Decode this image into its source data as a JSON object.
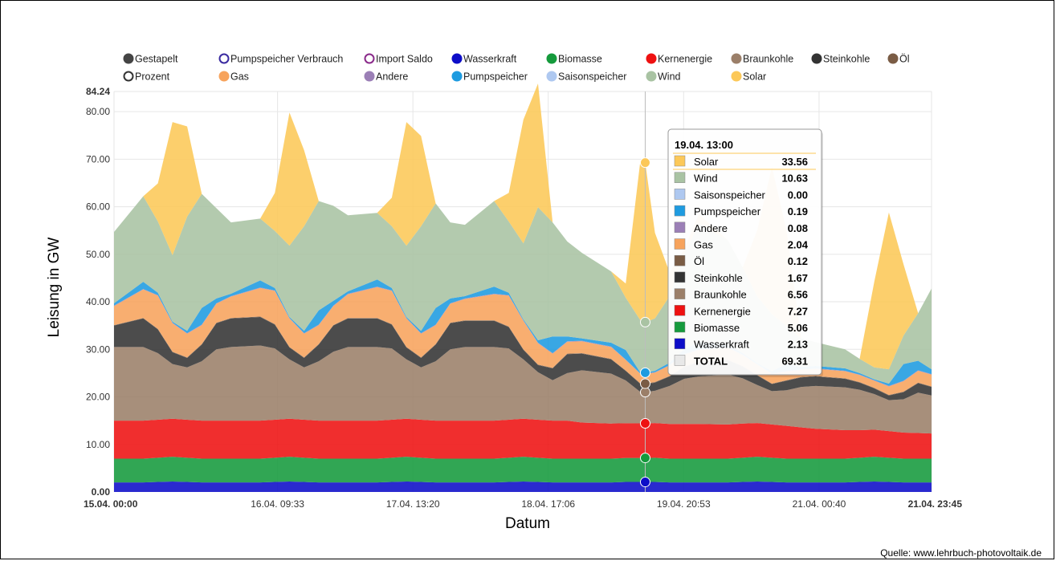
{
  "source": "Quelle: www.lehrbuch-photovoltaik.de",
  "colors": {
    "Gestapelt": "#444444",
    "Prozent": "#ffffff",
    "Pumpspeicher Verbrauch": "#ffffff",
    "Gas": "#f7a35c",
    "Import Saldo": "#ffffff",
    "Andere": "#9b7fb6",
    "Wasserkraft": "#0d0dc8",
    "Pumpspeicher": "#1e9be0",
    "Biomasse": "#159a3c",
    "Saisonspeicher": "#aec8f0",
    "Kernenergie": "#ee1111",
    "Wind": "#a9c3a3",
    "Braunkohle": "#9b7f69",
    "Solar": "#fcc858",
    "Steinkohle": "#333333",
    "Öl": "#7a5c45"
  },
  "legend": [
    [
      "Gestapelt",
      "Pumpspeicher Verbrauch",
      "Import Saldo",
      "Wasserkraft",
      "Biomasse",
      "Kernenergie",
      "Braunkohle",
      "Steinkohle",
      "Öl"
    ],
    [
      "Prozent",
      "Gas",
      "Andere",
      "Pumpspeicher",
      "Saisonspeicher",
      "Wind",
      "Solar"
    ]
  ],
  "legend_ring": {
    "Pumpspeicher Verbrauch": "#3a2aa0",
    "Import Saldo": "#8a2a8a",
    "Prozent": "#333333"
  },
  "tooltip": {
    "title": "19.04. 13:00",
    "rows": [
      {
        "name": "Solar",
        "value": "33.56"
      },
      {
        "name": "Wind",
        "value": "10.63"
      },
      {
        "name": "Saisonspeicher",
        "value": "0.00"
      },
      {
        "name": "Pumpspeicher",
        "value": "0.19"
      },
      {
        "name": "Andere",
        "value": "0.08"
      },
      {
        "name": "Gas",
        "value": "2.04"
      },
      {
        "name": "Öl",
        "value": "0.12"
      },
      {
        "name": "Steinkohle",
        "value": "1.67"
      },
      {
        "name": "Braunkohle",
        "value": "6.56"
      },
      {
        "name": "Kernenergie",
        "value": "7.27"
      },
      {
        "name": "Biomasse",
        "value": "5.06"
      },
      {
        "name": "Wasserkraft",
        "value": "2.13"
      },
      {
        "name": "TOTAL",
        "value": "69.31"
      }
    ]
  },
  "chart_data": {
    "type": "area",
    "stacked": true,
    "xlabel": "Datum",
    "ylabel": "Leisung in GW",
    "ylim": [
      0,
      84.24
    ],
    "xlim_hours": [
      0,
      167.75
    ],
    "y_ticks": [
      "0.00",
      "10.00",
      "20.00",
      "30.00",
      "40.00",
      "50.00",
      "60.00",
      "70.00",
      "80.00",
      "84.24"
    ],
    "y_tick_values": [
      0,
      10,
      20,
      30,
      40,
      50,
      60,
      70,
      80,
      84.24
    ],
    "x_ticks": [
      {
        "label": "15.04. 00:00",
        "hour": 0,
        "bold": true
      },
      {
        "label": "16.04. 09:33",
        "hour": 33.55
      },
      {
        "label": "17.04. 13:20",
        "hour": 61.33
      },
      {
        "label": "18.04. 17:06",
        "hour": 89.1
      },
      {
        "label": "19.04. 20:53",
        "hour": 116.88
      },
      {
        "label": "21.04. 00:40",
        "hour": 144.67
      },
      {
        "label": "21.04. 23:45",
        "hour": 167.75,
        "bold": true
      }
    ],
    "hover_hour": 109,
    "x_hours": [
      0,
      6,
      9,
      12,
      15,
      18,
      21,
      24,
      30,
      33,
      36,
      39,
      42,
      45,
      48,
      54,
      57,
      60,
      63,
      66,
      69,
      72,
      78,
      81,
      84,
      87,
      90,
      93,
      96,
      102,
      105,
      108,
      109,
      111,
      114,
      117,
      120,
      126,
      129,
      132,
      135,
      138,
      141,
      144,
      150,
      153,
      156,
      159,
      162,
      165,
      167.75
    ],
    "series": [
      {
        "name": "Wasserkraft",
        "color": "#0d0dc8",
        "values": [
          2.0,
          2.0,
          2.1,
          2.2,
          2.1,
          2.0,
          2.0,
          2.0,
          2.0,
          2.1,
          2.2,
          2.1,
          2.0,
          2.0,
          2.0,
          2.0,
          2.1,
          2.2,
          2.1,
          2.0,
          2.0,
          2.0,
          2.0,
          2.1,
          2.2,
          2.1,
          2.0,
          2.0,
          2.0,
          2.0,
          2.1,
          2.1,
          2.1,
          2.1,
          2.0,
          2.0,
          2.0,
          2.0,
          2.1,
          2.2,
          2.1,
          2.0,
          2.0,
          2.0,
          2.0,
          2.1,
          2.2,
          2.1,
          2.0,
          2.0,
          2.0
        ]
      },
      {
        "name": "Biomasse",
        "color": "#159a3c",
        "values": [
          5.0,
          5.0,
          5.1,
          5.2,
          5.1,
          5.0,
          5.0,
          5.0,
          5.0,
          5.1,
          5.2,
          5.1,
          5.0,
          5.0,
          5.0,
          5.0,
          5.1,
          5.2,
          5.1,
          5.0,
          5.0,
          5.0,
          5.0,
          5.1,
          5.2,
          5.1,
          5.0,
          5.0,
          5.0,
          5.0,
          5.06,
          5.06,
          5.06,
          5.1,
          5.0,
          5.0,
          5.0,
          5.0,
          5.1,
          5.2,
          5.1,
          5.0,
          5.0,
          5.0,
          5.0,
          5.1,
          5.2,
          5.1,
          5.0,
          5.0,
          5.0
        ]
      },
      {
        "name": "Kernenergie",
        "color": "#ee1111",
        "values": [
          8.0,
          8.0,
          8.0,
          8.0,
          8.0,
          8.0,
          8.0,
          8.0,
          8.0,
          8.0,
          8.0,
          8.0,
          8.0,
          8.0,
          8.0,
          8.0,
          8.0,
          8.0,
          8.0,
          8.0,
          8.0,
          8.0,
          8.0,
          8.0,
          8.0,
          8.0,
          8.0,
          8.0,
          7.6,
          7.4,
          7.3,
          7.27,
          7.27,
          7.3,
          7.3,
          7.3,
          7.3,
          7.2,
          7.2,
          7.1,
          7.0,
          6.9,
          6.6,
          6.3,
          6.0,
          5.8,
          5.7,
          5.6,
          5.5,
          5.4,
          5.3
        ]
      },
      {
        "name": "Braunkohle",
        "color": "#9b7f69",
        "values": [
          15.5,
          15.5,
          14.0,
          11.5,
          11.0,
          12.5,
          15.0,
          15.5,
          15.8,
          15.0,
          12.5,
          11.0,
          12.5,
          14.5,
          15.5,
          15.5,
          15.0,
          12.5,
          11.0,
          12.5,
          15.0,
          15.5,
          15.5,
          15.0,
          12.5,
          10.0,
          8.5,
          10.0,
          11.0,
          10.5,
          9.0,
          6.6,
          6.56,
          6.8,
          8.0,
          9.5,
          10.0,
          10.5,
          9.5,
          8.0,
          7.0,
          7.5,
          8.5,
          9.0,
          9.0,
          8.5,
          7.5,
          6.5,
          7.0,
          8.5,
          8.0
        ]
      },
      {
        "name": "Steinkohle",
        "color": "#333333",
        "values": [
          4.5,
          6.0,
          5.0,
          2.5,
          2.0,
          3.5,
          5.5,
          6.0,
          6.0,
          5.0,
          2.5,
          2.0,
          3.5,
          5.5,
          6.0,
          6.0,
          5.0,
          2.5,
          2.0,
          3.5,
          5.5,
          5.5,
          5.5,
          4.5,
          2.0,
          1.5,
          2.5,
          4.0,
          3.5,
          3.0,
          2.0,
          1.7,
          1.67,
          1.7,
          2.0,
          2.5,
          3.0,
          3.0,
          2.5,
          2.0,
          1.5,
          2.0,
          2.0,
          2.0,
          1.8,
          1.5,
          1.2,
          1.0,
          1.5,
          2.0,
          1.8
        ]
      },
      {
        "name": "Öl",
        "color": "#7a5c45",
        "values": [
          0.1,
          0.1,
          0.1,
          0.1,
          0.1,
          0.1,
          0.1,
          0.1,
          0.1,
          0.1,
          0.1,
          0.1,
          0.1,
          0.1,
          0.1,
          0.1,
          0.1,
          0.1,
          0.1,
          0.1,
          0.1,
          0.1,
          0.1,
          0.1,
          0.1,
          0.1,
          0.1,
          0.1,
          0.1,
          0.1,
          0.1,
          0.12,
          0.12,
          0.12,
          0.1,
          0.1,
          0.1,
          0.1,
          0.1,
          0.1,
          0.1,
          0.1,
          0.1,
          0.1,
          0.1,
          0.1,
          0.1,
          0.1,
          0.1,
          0.1,
          0.1
        ]
      },
      {
        "name": "Gas",
        "color": "#f7a35c",
        "values": [
          4.0,
          6.0,
          7.0,
          6.0,
          5.0,
          4.0,
          4.0,
          4.5,
          6.0,
          7.0,
          6.0,
          5.0,
          4.0,
          4.0,
          5.0,
          6.5,
          7.0,
          6.0,
          5.0,
          4.0,
          4.0,
          4.5,
          5.5,
          6.5,
          6.0,
          4.5,
          3.0,
          2.5,
          2.5,
          2.5,
          2.2,
          2.0,
          2.04,
          2.0,
          2.2,
          2.5,
          2.5,
          2.5,
          2.3,
          2.2,
          2.0,
          1.8,
          1.5,
          1.5,
          1.5,
          1.5,
          1.5,
          1.8,
          2.2,
          2.5,
          2.5
        ]
      },
      {
        "name": "Andere",
        "color": "#9b7fb6",
        "values": [
          0.1,
          0.1,
          0.1,
          0.1,
          0.1,
          0.1,
          0.1,
          0.1,
          0.1,
          0.1,
          0.1,
          0.1,
          0.1,
          0.1,
          0.1,
          0.1,
          0.1,
          0.1,
          0.1,
          0.1,
          0.1,
          0.1,
          0.1,
          0.1,
          0.1,
          0.1,
          0.1,
          0.1,
          0.1,
          0.1,
          0.1,
          0.08,
          0.08,
          0.08,
          0.1,
          0.1,
          0.1,
          0.1,
          0.1,
          0.1,
          0.1,
          0.1,
          0.1,
          0.1,
          0.1,
          0.1,
          0.1,
          0.1,
          0.1,
          0.1,
          0.1
        ]
      },
      {
        "name": "Pumpspeicher",
        "color": "#1e9be0",
        "values": [
          0.5,
          1.5,
          0.5,
          0.2,
          0.5,
          3.5,
          1.0,
          0.5,
          1.5,
          0.5,
          0.2,
          0.5,
          3.0,
          1.0,
          0.5,
          1.5,
          0.5,
          0.2,
          0.5,
          3.5,
          1.0,
          0.5,
          1.5,
          0.5,
          0.2,
          0.5,
          3.5,
          1.0,
          0.5,
          0.8,
          2.0,
          0.2,
          0.19,
          0.3,
          0.5,
          1.0,
          1.5,
          0.5,
          0.3,
          0.2,
          0.5,
          1.5,
          0.5,
          0.5,
          0.5,
          0.3,
          0.2,
          0.5,
          3.5,
          2.0,
          1.0
        ]
      },
      {
        "name": "Saisonspeicher",
        "color": "#aec8f0",
        "values": [
          0,
          0,
          0,
          0,
          0,
          0,
          0,
          0,
          0,
          0,
          0,
          0,
          0,
          0,
          0,
          0,
          0,
          0,
          0,
          0,
          0,
          0,
          0,
          0,
          0,
          0,
          0,
          0,
          0,
          0,
          0,
          0,
          0,
          0,
          0,
          0,
          0,
          0,
          0,
          0,
          0,
          0,
          0,
          0,
          0,
          0,
          0,
          0,
          0,
          0,
          0
        ]
      },
      {
        "name": "Wind",
        "color": "#a9c3a3",
        "values": [
          15.0,
          18.0,
          15.0,
          14.0,
          24.0,
          24.0,
          19.0,
          15.0,
          13.0,
          12.0,
          15.0,
          22.0,
          23.0,
          20.0,
          16.0,
          14.0,
          13.0,
          15.0,
          22.0,
          22.0,
          16.0,
          15.0,
          18.0,
          15.0,
          16.0,
          28.0,
          24.0,
          20.0,
          18.0,
          15.0,
          11.0,
          11.0,
          10.63,
          11.0,
          14.0,
          20.0,
          25.0,
          22.0,
          18.0,
          14.0,
          12.0,
          8.0,
          6.0,
          5.0,
          4.0,
          3.0,
          2.5,
          3.0,
          6.0,
          10.0,
          17.0
        ]
      },
      {
        "name": "Solar",
        "color": "#fcc858",
        "values": [
          0,
          0,
          8.0,
          28.0,
          19.0,
          0,
          0,
          0,
          0,
          8.0,
          28.0,
          16.0,
          0,
          0,
          0,
          0,
          6.0,
          26.0,
          19.0,
          0,
          0,
          0,
          0,
          6.0,
          26.0,
          26.0,
          0,
          0,
          0,
          0,
          3.0,
          33.5,
          33.56,
          18.0,
          5.0,
          1.0,
          2.0,
          0,
          0,
          14.0,
          31.0,
          20.0,
          0,
          0,
          0,
          0,
          18.0,
          33.0,
          15.0,
          0,
          0
        ]
      }
    ]
  }
}
